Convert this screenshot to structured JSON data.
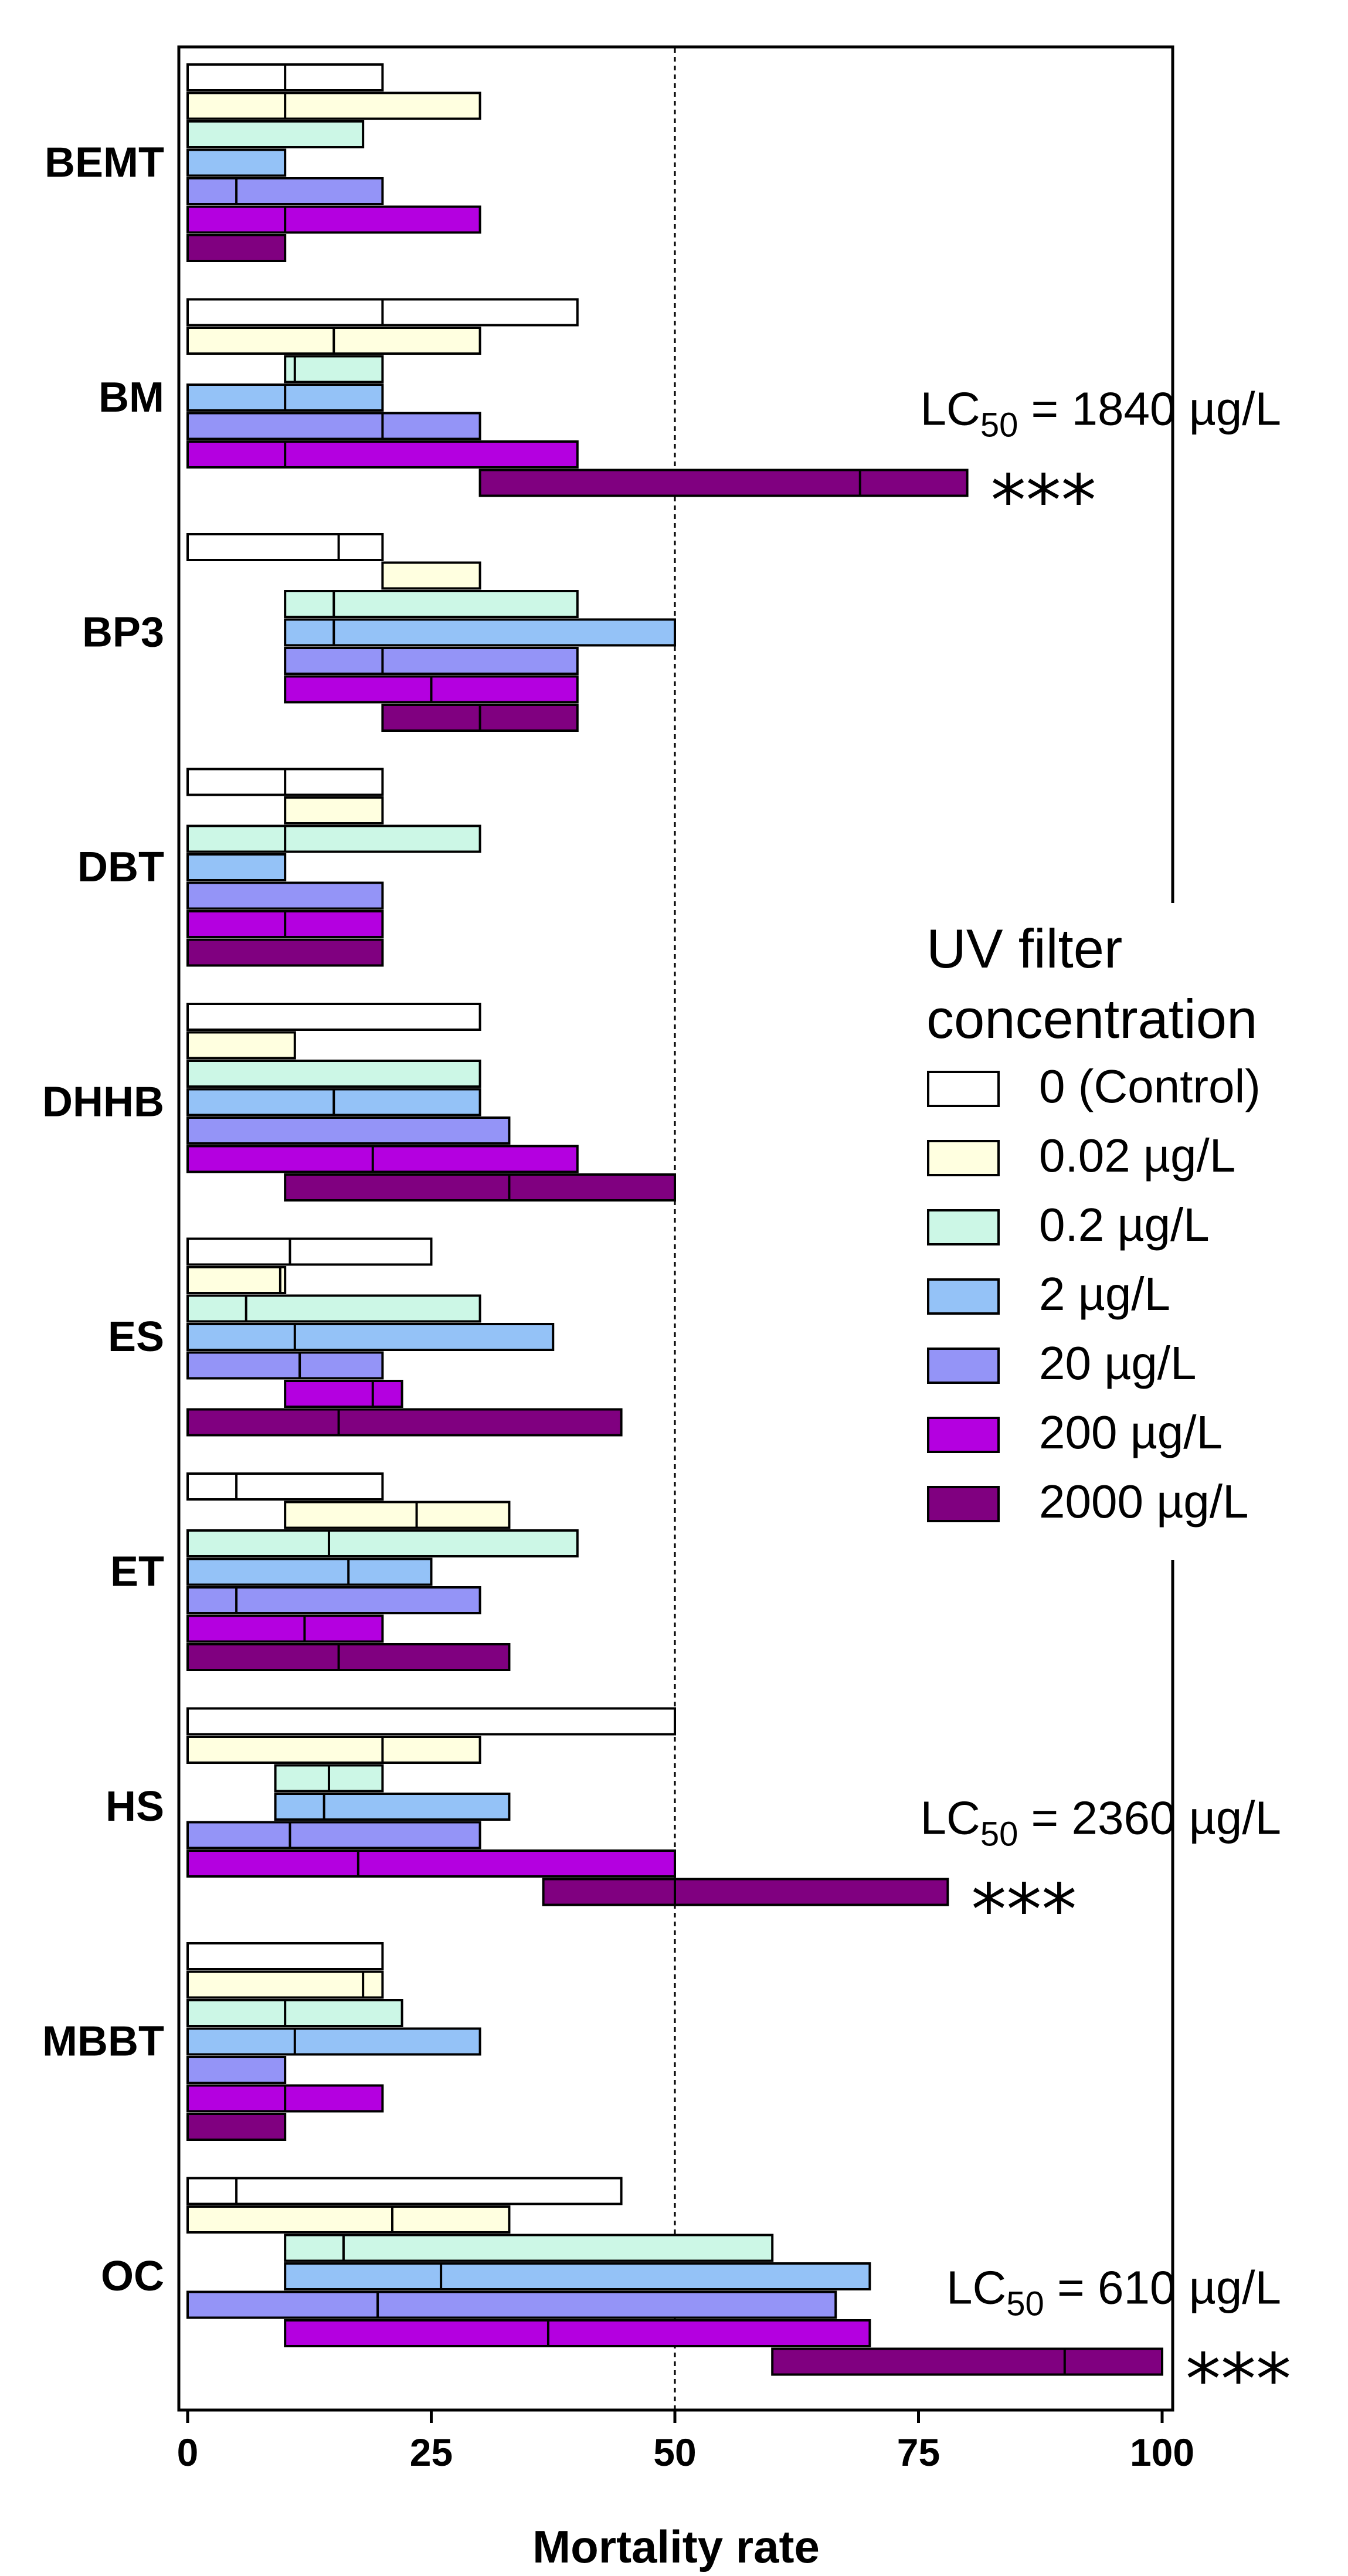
{
  "chart_data": {
    "type": "bar",
    "orientation": "horizontal",
    "xlabel": "Mortality rate",
    "xlim": [
      0,
      100
    ],
    "xticks": [
      "0",
      "25",
      "50",
      "75",
      "100"
    ],
    "reference_line": 50,
    "categories": [
      "BEMT",
      "BM",
      "BP3",
      "DBT",
      "DHHB",
      "ES",
      "ET",
      "HS",
      "MBBT",
      "OC"
    ],
    "series": [
      {
        "name": "0 (Control)",
        "color": "#ffffff",
        "values": [
          [
            0,
            10,
            20
          ],
          [
            0,
            20,
            40
          ],
          [
            0,
            15.5,
            20
          ],
          [
            0,
            10,
            20
          ],
          [
            0,
            30,
            30
          ],
          [
            0,
            10.5,
            25
          ],
          [
            0,
            5,
            20
          ],
          [
            0,
            50,
            50
          ],
          [
            0,
            20,
            20
          ],
          [
            0,
            5,
            44.5
          ]
        ]
      },
      {
        "name": "0.02 µg/L",
        "color": "#ffffe0",
        "values": [
          [
            0,
            10,
            30
          ],
          [
            0,
            15,
            30
          ],
          [
            20,
            20,
            30
          ],
          [
            10,
            10,
            20
          ],
          [
            0,
            0,
            11
          ],
          [
            0,
            9.5,
            10
          ],
          [
            10,
            23.5,
            33
          ],
          [
            0,
            20,
            30
          ],
          [
            0,
            18,
            20
          ],
          [
            0,
            21,
            33
          ]
        ]
      },
      {
        "name": "0.2 µg/L",
        "color": "#ccf7e6",
        "values": [
          [
            0,
            0,
            18
          ],
          [
            10,
            11,
            20
          ],
          [
            10,
            15,
            40
          ],
          [
            0,
            10,
            30
          ],
          [
            0,
            30,
            30
          ],
          [
            0,
            6,
            30
          ],
          [
            0,
            14.5,
            40
          ],
          [
            9,
            14.5,
            20
          ],
          [
            0,
            10,
            22
          ],
          [
            10,
            16,
            60
          ]
        ]
      },
      {
        "name": "2 µg/L",
        "color": "#94c2f7",
        "values": [
          [
            0,
            0,
            10
          ],
          [
            0,
            10,
            20
          ],
          [
            10,
            15,
            50
          ],
          [
            0,
            10,
            10
          ],
          [
            0,
            15,
            30
          ],
          [
            0,
            11,
            37.5
          ],
          [
            0,
            16.5,
            25
          ],
          [
            9,
            14,
            33
          ],
          [
            0,
            11,
            30
          ],
          [
            10,
            26,
            70
          ]
        ]
      },
      {
        "name": "20 µg/L",
        "color": "#9494f7",
        "values": [
          [
            0,
            5,
            20
          ],
          [
            0,
            20,
            30
          ],
          [
            10,
            20,
            40
          ],
          [
            0,
            20,
            20
          ],
          [
            0,
            33,
            33
          ],
          [
            0,
            11.5,
            20
          ],
          [
            0,
            5,
            30
          ],
          [
            0,
            10.5,
            30
          ],
          [
            0,
            10,
            10
          ],
          [
            0,
            19.5,
            66.5
          ]
        ]
      },
      {
        "name": "200 µg/L",
        "color": "#b400e0",
        "values": [
          [
            0,
            10,
            30
          ],
          [
            0,
            10,
            40
          ],
          [
            10,
            25,
            40
          ],
          [
            0,
            10,
            20
          ],
          [
            0,
            19,
            40
          ],
          [
            10,
            19,
            22
          ],
          [
            0,
            12,
            20
          ],
          [
            0,
            17.5,
            50
          ],
          [
            0,
            10,
            20
          ],
          [
            10,
            37,
            70
          ]
        ]
      },
      {
        "name": "2000 µg/L",
        "color": "#800080",
        "values": [
          [
            0,
            10,
            10
          ],
          [
            30,
            69,
            80
          ],
          [
            20,
            30,
            40
          ],
          [
            0,
            20,
            20
          ],
          [
            10,
            33,
            50
          ],
          [
            0,
            15.5,
            44.5
          ],
          [
            0,
            15.5,
            33
          ],
          [
            36.5,
            50,
            78
          ],
          [
            0,
            10,
            10
          ],
          [
            60,
            90,
            100
          ]
        ]
      }
    ],
    "annotations": [
      {
        "category": "BM",
        "lc_prefix": "LC",
        "lc_sub": "50",
        "lc_rest": " = 1840 µg/L",
        "stars": "***"
      },
      {
        "category": "HS",
        "lc_prefix": "LC",
        "lc_sub": "50",
        "lc_rest": " = 2360 µg/L",
        "stars": "***"
      },
      {
        "category": "OC",
        "lc_prefix": "LC",
        "lc_sub": "50",
        "lc_rest": " = 610 µg/L",
        "stars": "***"
      }
    ],
    "legend": {
      "title_line1": "UV filter",
      "title_line2": "concentration",
      "placement": "center-right"
    }
  }
}
